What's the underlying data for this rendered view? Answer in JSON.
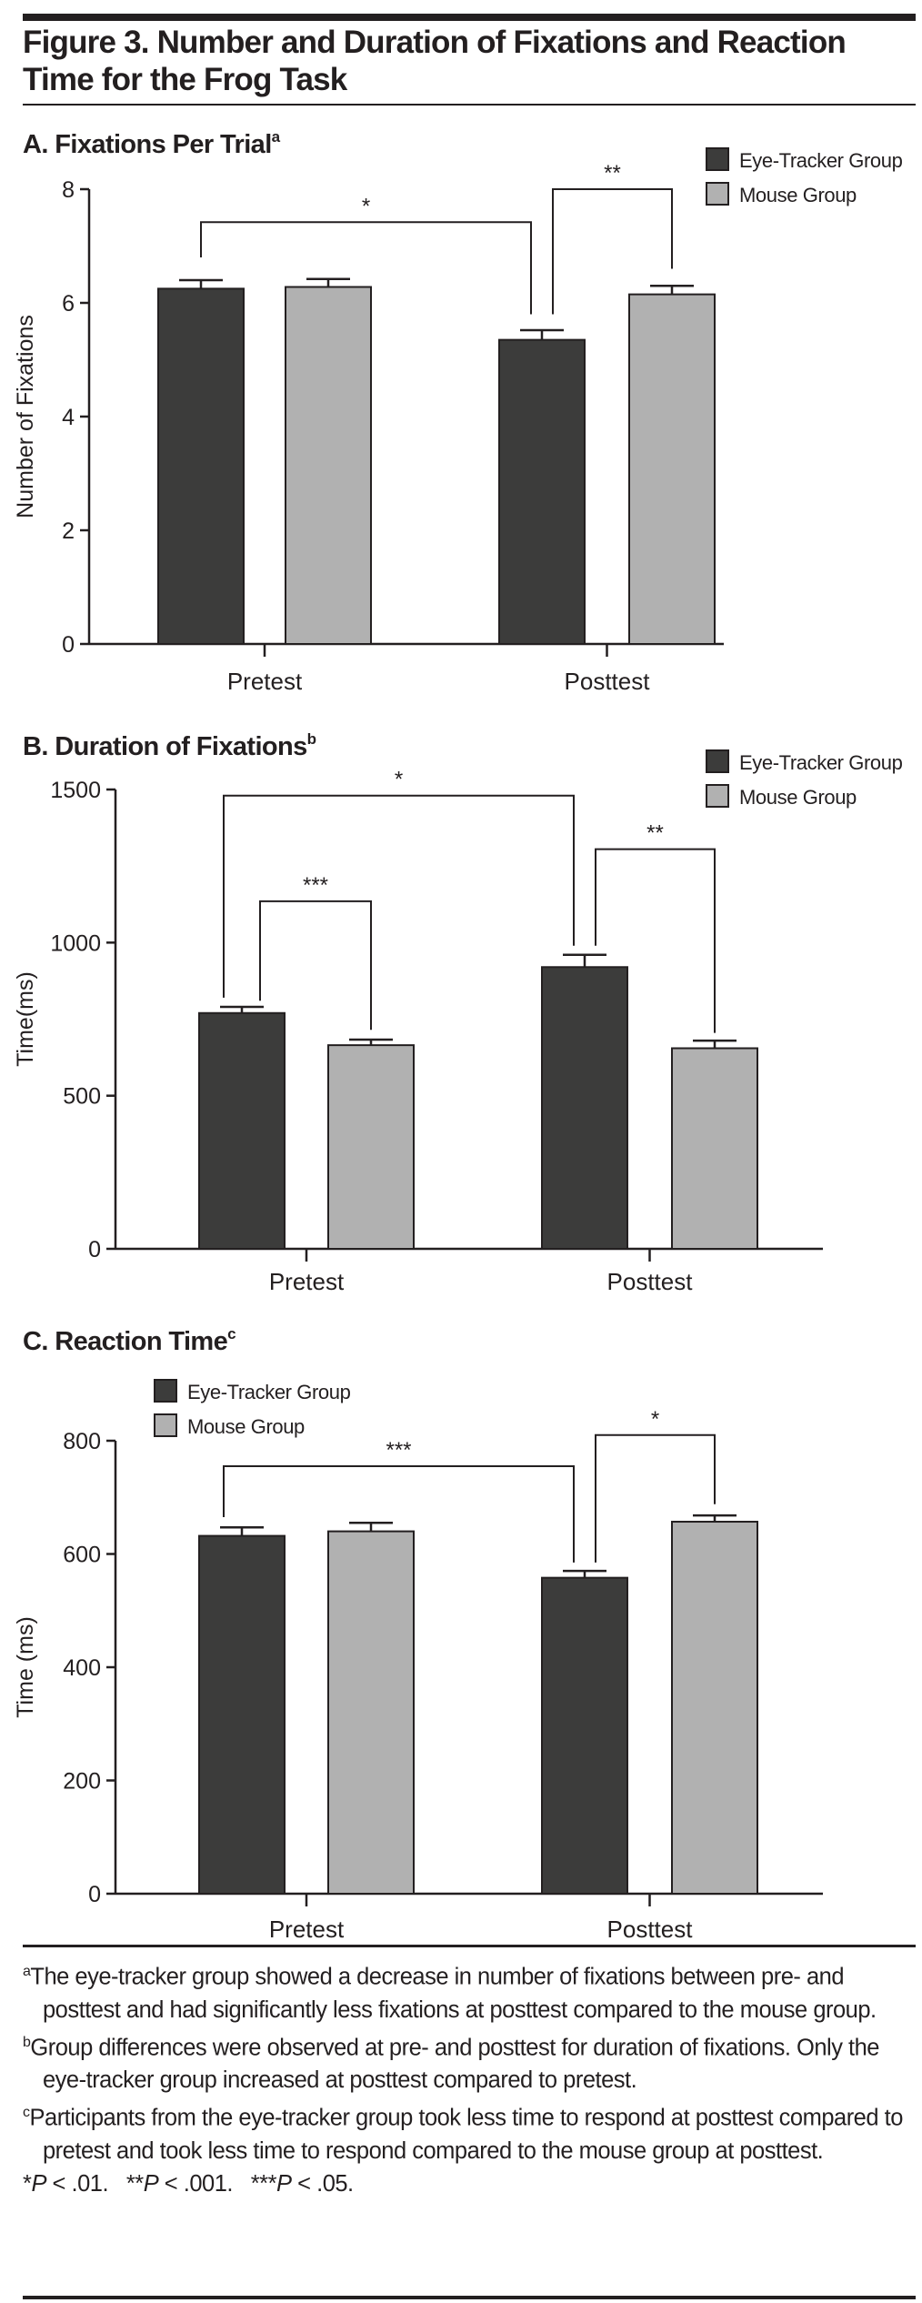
{
  "figure_title": "Figure 3. Number and Duration of Fixations and Reaction Time for the Frog Task",
  "colors": {
    "eye_tracker": "#3c3c3b",
    "mouse": "#b1b1b1",
    "ink": "#231f20"
  },
  "chart_data": [
    {
      "type": "bar",
      "title": "A. Fixations Per Trial",
      "title_sup": "a",
      "ylabel": "Number of Fixations",
      "xlabel": "",
      "ylim": [
        0,
        8
      ],
      "yticks": [
        "0",
        "2",
        "4",
        "6",
        "8"
      ],
      "categories": [
        "Pretest",
        "Posttest"
      ],
      "legend": {
        "placement": "top-right",
        "entries": [
          "Eye-Tracker Group",
          "Mouse Group"
        ]
      },
      "series": [
        {
          "name": "Eye-Tracker Group",
          "values": [
            6.25,
            5.35
          ],
          "error_upper": [
            6.4,
            5.52
          ]
        },
        {
          "name": "Mouse Group",
          "values": [
            6.28,
            6.15
          ],
          "error_upper": [
            6.42,
            6.3
          ]
        }
      ],
      "significance": [
        {
          "label": "*",
          "from": "Pretest Eye-Tracker",
          "to": "Posttest Eye-Tracker",
          "top": 7.42,
          "left_end": 6.8,
          "right_end": 5.8
        },
        {
          "label": "**",
          "from": "Posttest Eye-Tracker",
          "to": "Posttest Mouse",
          "top": 8.0,
          "left_end": 5.8,
          "right_end": 6.6
        }
      ]
    },
    {
      "type": "bar",
      "title": "B. Duration of Fixations",
      "title_sup": "b",
      "ylabel": "Time(ms)",
      "xlabel": "",
      "ylim": [
        0,
        1500
      ],
      "yticks": [
        "0",
        "500",
        "1000",
        "1500"
      ],
      "categories": [
        "Pretest",
        "Posttest"
      ],
      "legend": {
        "placement": "top-right",
        "entries": [
          "Eye-Tracker Group",
          "Mouse Group"
        ]
      },
      "series": [
        {
          "name": "Eye-Tracker Group",
          "values": [
            770,
            920
          ],
          "error_upper": [
            790,
            960
          ]
        },
        {
          "name": "Mouse Group",
          "values": [
            665,
            655
          ],
          "error_upper": [
            683,
            680
          ]
        }
      ],
      "significance": [
        {
          "label": "*",
          "from": "Pretest Eye-Tracker",
          "to": "Posttest Eye-Tracker",
          "top": 1480,
          "left_end": 820,
          "right_end": 990
        },
        {
          "label": "***",
          "from": "Pretest Eye-Tracker",
          "to": "Pretest Mouse",
          "top": 1135,
          "left_end": 810,
          "right_end": 715
        },
        {
          "label": "**",
          "from": "Posttest Eye-Tracker",
          "to": "Posttest Mouse",
          "top": 1305,
          "left_end": 990,
          "right_end": 705
        }
      ]
    },
    {
      "type": "bar",
      "title": "C. Reaction Time",
      "title_sup": "c",
      "ylabel": "Time (ms)",
      "xlabel": "",
      "ylim": [
        0,
        800
      ],
      "yticks": [
        "0",
        "200",
        "400",
        "600",
        "800"
      ],
      "categories": [
        "Pretest",
        "Posttest"
      ],
      "legend": {
        "placement": "top-left",
        "entries": [
          "Eye-Tracker Group",
          "Mouse Group"
        ]
      },
      "series": [
        {
          "name": "Eye-Tracker Group",
          "values": [
            632,
            558
          ],
          "error_upper": [
            647,
            570
          ]
        },
        {
          "name": "Mouse Group",
          "values": [
            640,
            657
          ],
          "error_upper": [
            655,
            668
          ]
        }
      ],
      "significance": [
        {
          "label": "***",
          "from": "Pretest Eye-Tracker",
          "to": "Posttest Eye-Tracker",
          "top": 755,
          "left_end": 665,
          "right_end": 585
        },
        {
          "label": "*",
          "from": "Posttest Eye-Tracker",
          "to": "Posttest Mouse",
          "top": 810,
          "left_end": 585,
          "right_end": 688
        }
      ]
    }
  ],
  "footnotes": [
    {
      "mark": "a",
      "text": "The eye-tracker group showed a decrease in number of fixations between pre- and posttest and had significantly less fixations at posttest compared to the mouse group."
    },
    {
      "mark": "b",
      "text": "Group differences were observed at pre- and posttest for duration of fixations. Only the eye-tracker group increased at posttest compared to pretest."
    },
    {
      "mark": "c",
      "text": "Participants from the eye-tracker group took less time to respond at posttest compared to pretest and took less time to respond compared to the mouse group at posttest."
    }
  ],
  "pvalues": [
    {
      "stars": "*",
      "p": "P",
      "rest": " < .01."
    },
    {
      "stars": "**",
      "p": "P",
      "rest": " < .001."
    },
    {
      "stars": "***",
      "p": "P",
      "rest": " < .05."
    }
  ]
}
